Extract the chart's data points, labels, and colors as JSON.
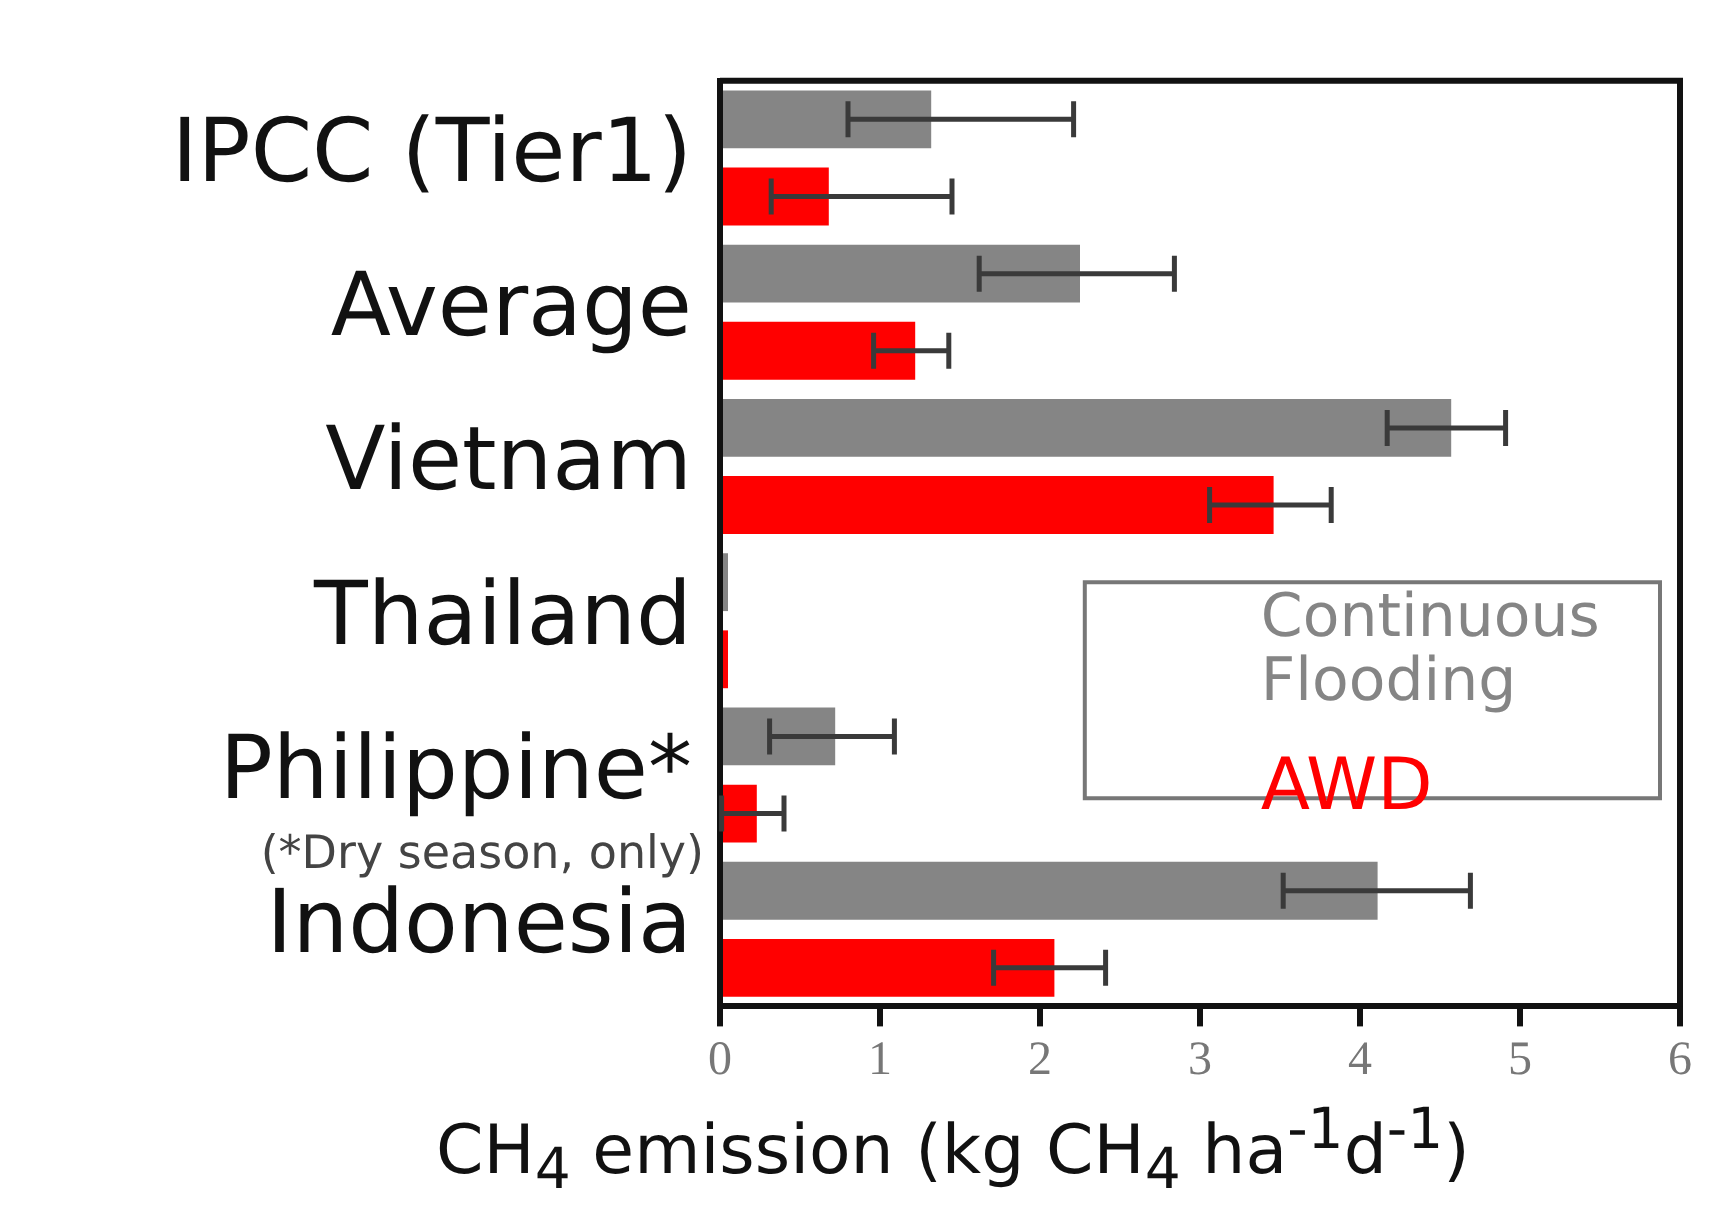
{
  "chart_data": {
    "type": "bar",
    "orientation": "horizontal",
    "xlabel": "CH$_{4}$ emission (kg CH$_{4}$ ha$^{-1}$d$^{-1}$)",
    "categories": [
      "IPCC (Tier1)",
      "Average",
      "Vietnam",
      "Thailand",
      "Philippine*",
      "Indonesia"
    ],
    "series": [
      {
        "name": "Continuous Flooding",
        "color": "#858585",
        "values": [
          1.32,
          2.25,
          4.57,
          0.05,
          0.72,
          4.11
        ],
        "errors": [
          [
            0.8,
            2.21
          ],
          [
            1.62,
            2.84
          ],
          [
            4.17,
            4.91
          ],
          null,
          [
            0.31,
            1.09
          ],
          [
            3.52,
            4.69
          ]
        ]
      },
      {
        "name": "AWD",
        "color": "#ff0000",
        "values": [
          0.68,
          1.22,
          3.46,
          0.05,
          0.23,
          2.09
        ],
        "errors": [
          [
            0.32,
            1.45
          ],
          [
            0.96,
            1.43
          ],
          [
            3.06,
            3.82
          ],
          null,
          [
            0.01,
            0.4
          ],
          [
            1.71,
            2.41
          ]
        ]
      }
    ],
    "xlim": [
      0,
      6
    ],
    "xticks": [
      0,
      1,
      2,
      3,
      4,
      5,
      6
    ],
    "grid": false,
    "legend": "right",
    "annotations": [
      "(*Dry season, only)"
    ]
  }
}
